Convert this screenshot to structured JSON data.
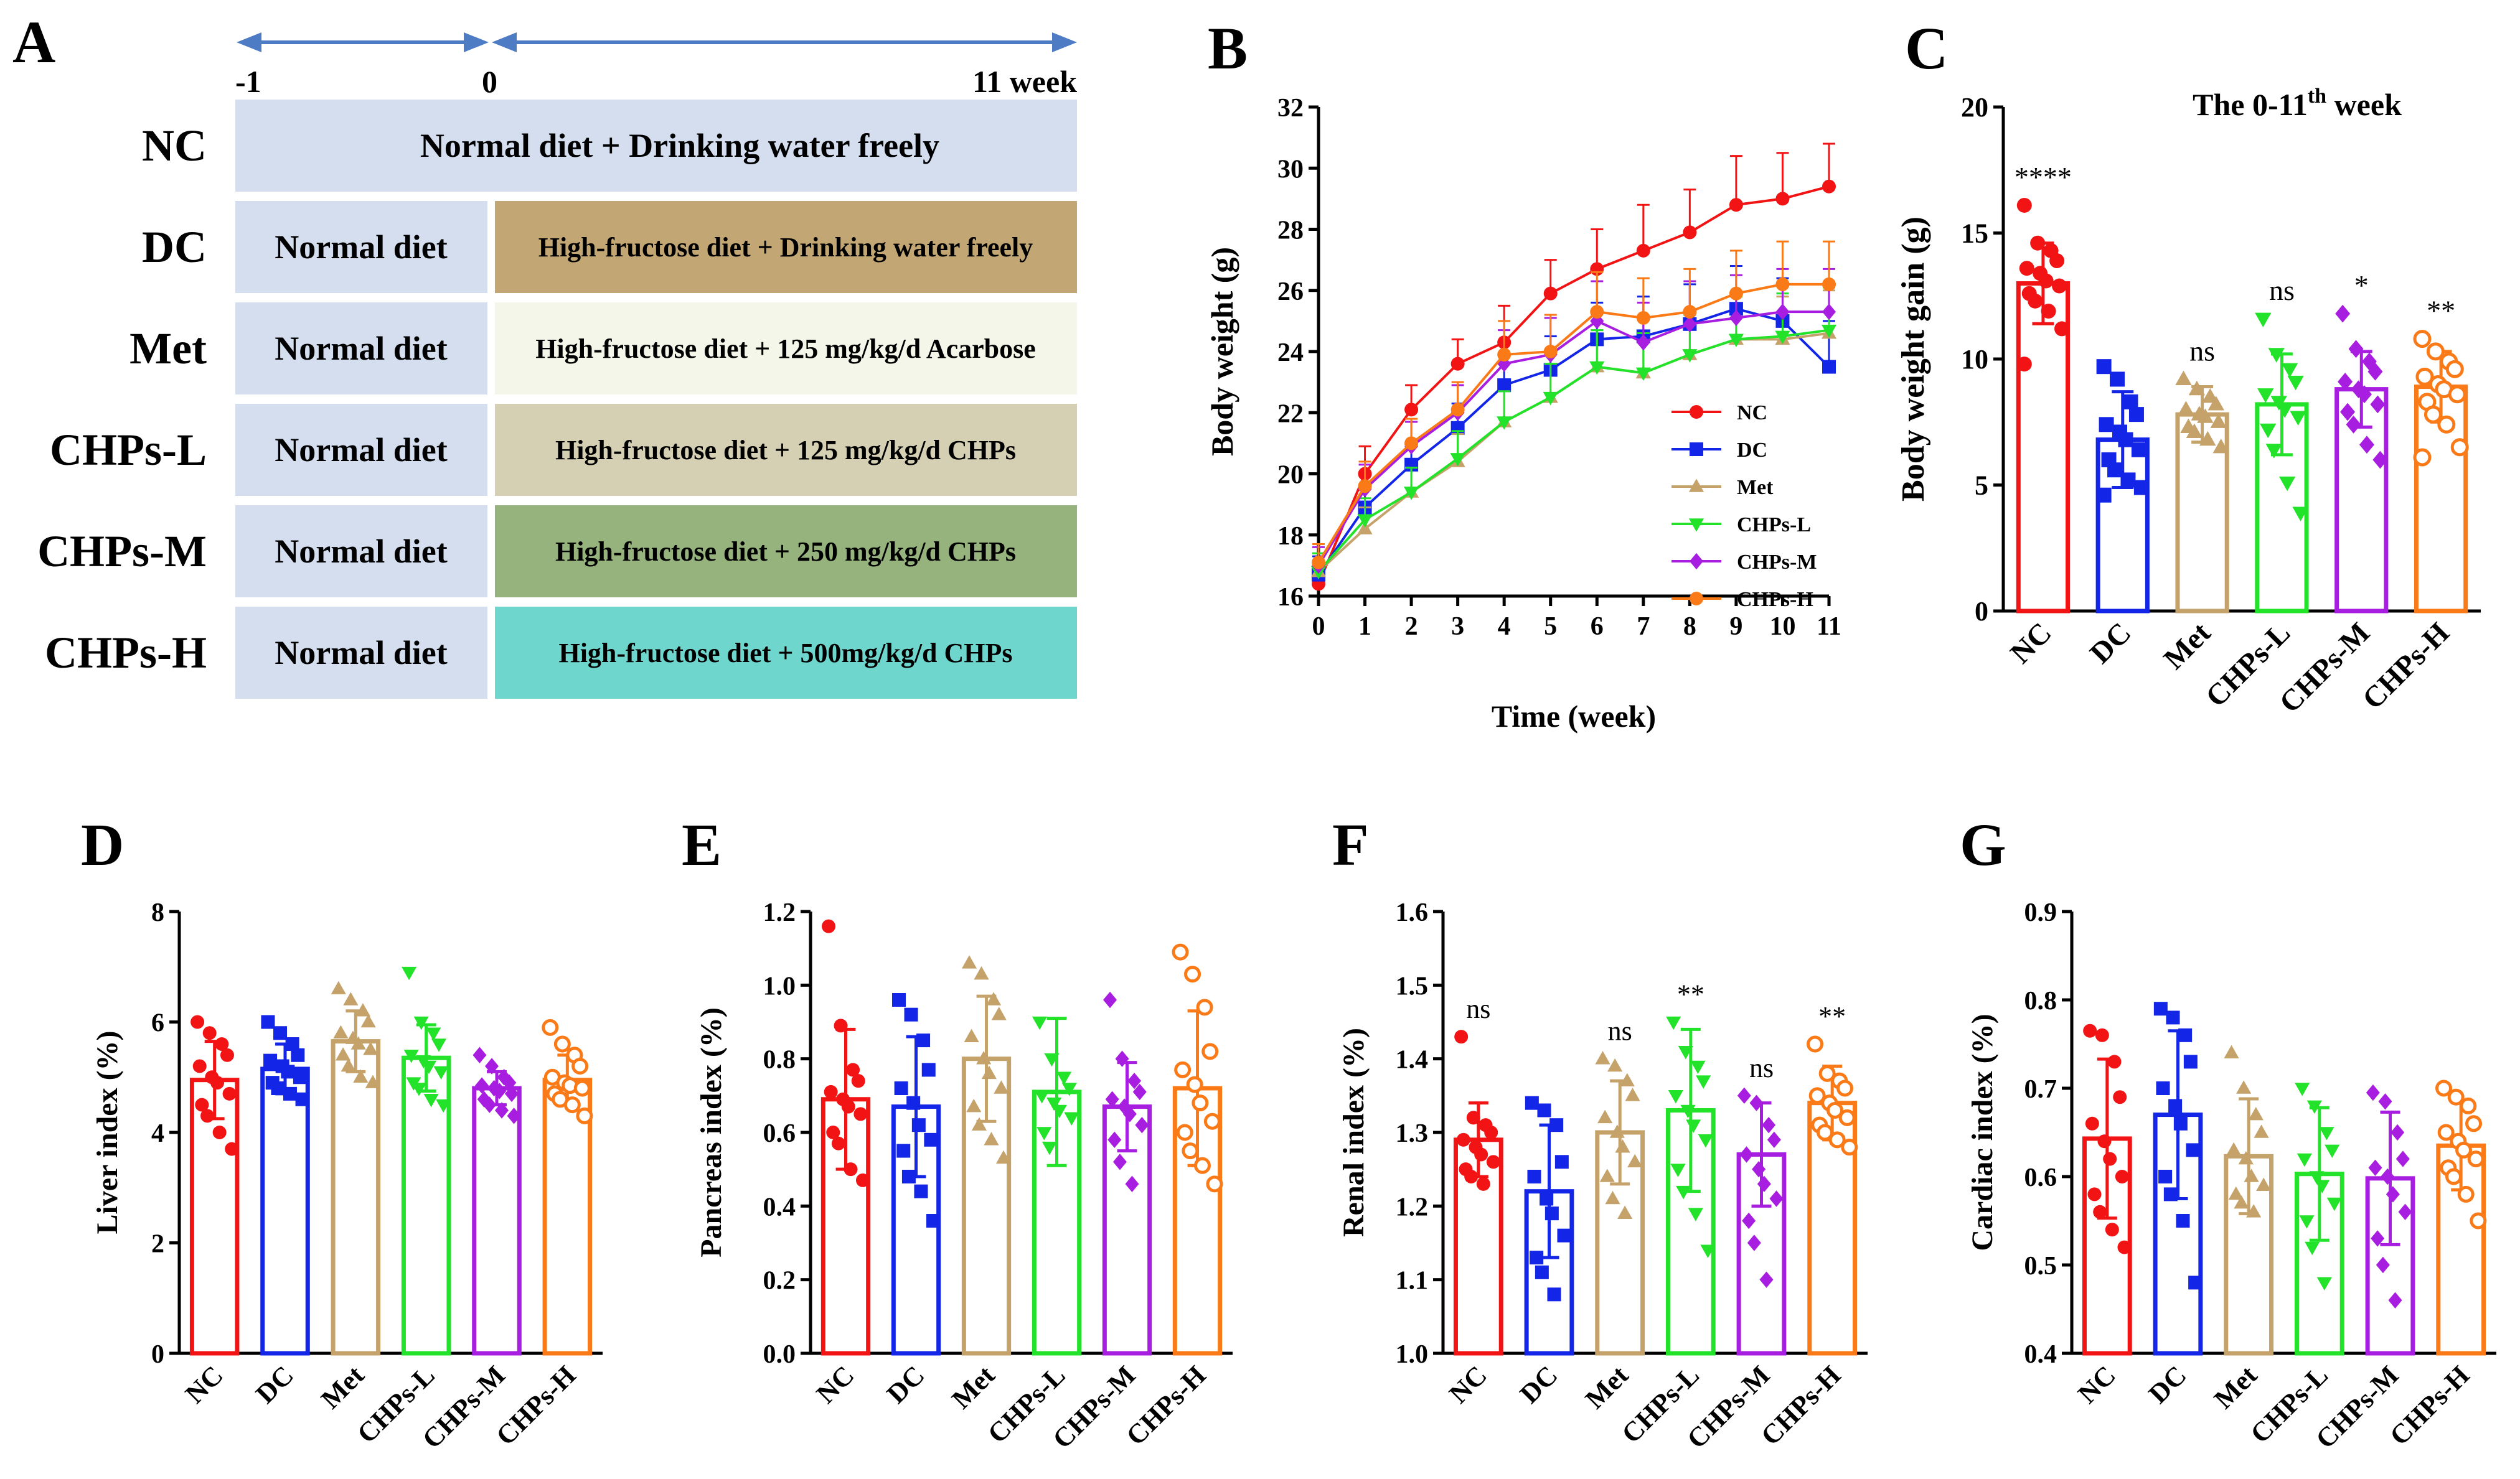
{
  "panels": {
    "A": "A",
    "B": "B",
    "C": "C",
    "D": "D",
    "E": "E",
    "F": "F",
    "G": "G"
  },
  "colors": {
    "NC": "#f21414",
    "DC": "#1326e8",
    "Met": "#c4a26a",
    "CHPs-L": "#22e22a",
    "CHPs-M": "#a81ee0",
    "CHPs-H": "#fa7a18",
    "arrow": "#4d7cc4"
  },
  "schedule": {
    "timeline": {
      "t_start": "-1",
      "t_zero": "0",
      "t_end": "11 week"
    },
    "groups": [
      {
        "name": "NC",
        "pre": "",
        "post": "Normal diet + Drinking water freely",
        "full": true,
        "color": "#d4deef"
      },
      {
        "name": "DC",
        "pre": "Normal diet",
        "post": "High-fructose diet + Drinking water freely",
        "full": false,
        "color": "#c2a673"
      },
      {
        "name": "Met",
        "pre": "Normal diet",
        "post": "High-fructose diet + 125 mg/kg/d Acarbose",
        "full": false,
        "color": "#f4f6ea"
      },
      {
        "name": "CHPs-L",
        "pre": "Normal diet",
        "post": "High-fructose diet + 125 mg/kg/d CHPs",
        "full": false,
        "color": "#d5d0b4"
      },
      {
        "name": "CHPs-M",
        "pre": "Normal diet",
        "post": "High-fructose diet + 250 mg/kg/d CHPs",
        "full": false,
        "color": "#96b37e"
      },
      {
        "name": "CHPs-H",
        "pre": "Normal diet",
        "post": "High-fructose diet + 500mg/kg/d CHPs",
        "full": false,
        "color": "#6fd6cd"
      }
    ],
    "pre_color": "#d4deef"
  },
  "chart_data": [
    {
      "id": "B",
      "type": "line",
      "title": "",
      "xlabel": "Time (week)",
      "ylabel": "Body weight (g)",
      "xlim": [
        0,
        11
      ],
      "ylim": [
        16,
        32
      ],
      "yticks": [
        16,
        18,
        20,
        22,
        24,
        26,
        28,
        30,
        32
      ],
      "x": [
        0,
        1,
        2,
        3,
        4,
        5,
        6,
        7,
        8,
        9,
        10,
        11
      ],
      "series": [
        {
          "name": "NC",
          "marker": "circle",
          "values": [
            16.4,
            20.0,
            22.1,
            23.6,
            24.3,
            25.9,
            26.7,
            27.3,
            27.9,
            28.8,
            29.0,
            29.4
          ],
          "err": [
            0.6,
            0.9,
            0.8,
            0.8,
            1.2,
            1.1,
            1.3,
            1.5,
            1.4,
            1.6,
            1.5,
            1.4
          ]
        },
        {
          "name": "DC",
          "marker": "square",
          "values": [
            16.7,
            18.9,
            20.3,
            21.5,
            22.9,
            23.4,
            24.4,
            24.5,
            24.9,
            25.4,
            25.0,
            23.5
          ],
          "err": [
            0.6,
            0.7,
            0.7,
            0.8,
            1.0,
            1.1,
            1.2,
            1.3,
            1.3,
            1.4,
            1.4,
            1.5
          ]
        },
        {
          "name": "Met",
          "marker": "triangle",
          "values": [
            16.8,
            18.2,
            19.4,
            20.4,
            21.7,
            22.5,
            23.5,
            23.3,
            23.9,
            24.4,
            24.4,
            24.6
          ],
          "err": [
            0.6,
            0.7,
            0.8,
            0.9,
            1.0,
            1.1,
            1.2,
            1.3,
            1.3,
            1.4,
            1.4,
            1.4
          ]
        },
        {
          "name": "CHPs-L",
          "marker": "triangle-down",
          "values": [
            16.8,
            18.5,
            19.4,
            20.5,
            21.7,
            22.5,
            23.5,
            23.3,
            23.9,
            24.4,
            24.5,
            24.7
          ],
          "err": [
            0.6,
            0.7,
            0.8,
            0.9,
            1.0,
            1.1,
            1.2,
            1.3,
            1.3,
            1.4,
            1.4,
            1.4
          ]
        },
        {
          "name": "CHPs-M",
          "marker": "diamond",
          "values": [
            17.0,
            19.5,
            20.9,
            22.0,
            23.6,
            23.9,
            25.0,
            24.3,
            24.9,
            25.1,
            25.3,
            25.3
          ],
          "err": [
            0.6,
            0.8,
            0.8,
            0.9,
            1.1,
            1.2,
            1.3,
            1.3,
            1.4,
            1.4,
            1.4,
            1.4
          ]
        },
        {
          "name": "CHPs-H",
          "marker": "circle",
          "values": [
            17.1,
            19.6,
            21.0,
            22.1,
            23.9,
            24.0,
            25.3,
            25.1,
            25.3,
            25.9,
            26.2,
            26.2
          ],
          "err": [
            0.6,
            0.8,
            0.8,
            0.9,
            1.1,
            1.2,
            1.3,
            1.3,
            1.4,
            1.4,
            1.4,
            1.4
          ]
        }
      ],
      "legend": "right"
    },
    {
      "id": "C",
      "type": "bar",
      "title": "The 0-11th week",
      "title_main": "The 0-11",
      "title_sup": "th",
      "title_tail": " week",
      "xlabel": "",
      "ylabel": "Body weight gain (g)",
      "ylim": [
        0,
        20
      ],
      "yticks": [
        0,
        5,
        10,
        15,
        20
      ],
      "categories": [
        "NC",
        "DC",
        "Met",
        "CHPs-L",
        "CHPs-M",
        "CHPs-H"
      ],
      "values": [
        13.0,
        6.8,
        7.8,
        8.2,
        8.8,
        8.9
      ],
      "sd": [
        1.6,
        1.9,
        1.1,
        2.0,
        1.5,
        1.4
      ],
      "sig": [
        "****",
        "",
        "ns",
        "ns",
        "*",
        "**"
      ],
      "points": [
        [
          16.1,
          14.6,
          14.3,
          13.9,
          13.6,
          13.4,
          13.1,
          12.9,
          12.6,
          12.3,
          11.9,
          11.2,
          9.8
        ],
        [
          9.7,
          9.2,
          8.3,
          7.8,
          7.4,
          7.1,
          6.8,
          6.4,
          6.0,
          5.6,
          5.2,
          4.9,
          4.6
        ],
        [
          9.2,
          8.8,
          8.5,
          8.2,
          8.0,
          7.8,
          7.7,
          7.5,
          7.3,
          7.1,
          6.8,
          6.5
        ],
        [
          11.6,
          10.2,
          9.6,
          9.1,
          8.6,
          8.3,
          8.0,
          7.7,
          7.2,
          6.4,
          5.1,
          3.9
        ],
        [
          11.8,
          10.4,
          9.9,
          9.5,
          9.1,
          8.8,
          8.6,
          8.2,
          7.9,
          7.4,
          6.6,
          6.0
        ],
        [
          10.8,
          10.3,
          9.9,
          9.6,
          9.3,
          9.0,
          8.8,
          8.6,
          8.3,
          7.8,
          7.4,
          6.5,
          6.1
        ]
      ]
    },
    {
      "id": "D",
      "type": "bar",
      "xlabel": "",
      "ylabel": "Liver index (%)",
      "ylim": [
        0,
        8
      ],
      "yticks": [
        0,
        2,
        4,
        6,
        8
      ],
      "categories": [
        "NC",
        "DC",
        "Met",
        "CHPs-L",
        "CHPs-M",
        "CHPs-H"
      ],
      "values": [
        4.95,
        5.15,
        5.65,
        5.35,
        4.8,
        4.95
      ],
      "sd": [
        0.7,
        0.45,
        0.55,
        0.6,
        0.3,
        0.45
      ],
      "sig": [
        "",
        "",
        "",
        "",
        "",
        ""
      ],
      "points": [
        [
          6.0,
          5.8,
          5.6,
          5.4,
          5.2,
          5.0,
          4.9,
          4.7,
          4.5,
          4.3,
          4.0,
          3.7
        ],
        [
          6.0,
          5.8,
          5.6,
          5.4,
          5.3,
          5.2,
          5.1,
          5.0,
          4.9,
          4.8,
          4.7,
          4.6
        ],
        [
          6.6,
          6.4,
          6.2,
          6.0,
          5.8,
          5.7,
          5.6,
          5.5,
          5.4,
          5.2,
          5.0,
          4.9
        ],
        [
          6.9,
          6.0,
          5.8,
          5.6,
          5.4,
          5.3,
          5.2,
          5.1,
          4.9,
          4.8,
          4.6,
          4.5
        ],
        [
          5.4,
          5.2,
          5.0,
          4.9,
          4.85,
          4.8,
          4.75,
          4.7,
          4.6,
          4.5,
          4.4,
          4.3
        ],
        [
          5.9,
          5.6,
          5.4,
          5.2,
          5.0,
          4.9,
          4.85,
          4.8,
          4.7,
          4.6,
          4.5,
          4.3
        ]
      ]
    },
    {
      "id": "E",
      "type": "bar",
      "xlabel": "",
      "ylabel": "Pancreas index (%)",
      "ylim": [
        0,
        1.2
      ],
      "yticks": [
        "0.0",
        "0.2",
        "0.4",
        "0.6",
        "0.8",
        "1.0",
        "1.2"
      ],
      "categories": [
        "NC",
        "DC",
        "Met",
        "CHPs-L",
        "CHPs-M",
        "CHPs-H"
      ],
      "values": [
        0.69,
        0.67,
        0.8,
        0.71,
        0.67,
        0.72
      ],
      "sd": [
        0.19,
        0.19,
        0.17,
        0.2,
        0.12,
        0.21
      ],
      "sig": [
        "",
        "",
        "",
        "",
        "",
        ""
      ],
      "points": [
        [
          1.16,
          0.89,
          0.77,
          0.74,
          0.71,
          0.69,
          0.67,
          0.65,
          0.6,
          0.57,
          0.5,
          0.47
        ],
        [
          0.96,
          0.92,
          0.85,
          0.77,
          0.72,
          0.68,
          0.62,
          0.58,
          0.55,
          0.48,
          0.44,
          0.36
        ],
        [
          1.06,
          1.03,
          0.96,
          0.92,
          0.86,
          0.8,
          0.76,
          0.72,
          0.67,
          0.62,
          0.58,
          0.53
        ],
        [
          0.9,
          0.8,
          0.75,
          0.72,
          0.7,
          0.68,
          0.66,
          0.64,
          0.6,
          0.56
        ],
        [
          0.96,
          0.8,
          0.74,
          0.71,
          0.69,
          0.67,
          0.65,
          0.62,
          0.58,
          0.52,
          0.46
        ],
        [
          1.09,
          1.03,
          0.94,
          0.82,
          0.77,
          0.73,
          0.68,
          0.63,
          0.6,
          0.55,
          0.51,
          0.46
        ]
      ]
    },
    {
      "id": "F",
      "type": "bar",
      "xlabel": "",
      "ylabel": "Renal index (%)",
      "ylim": [
        1.0,
        1.6
      ],
      "yticks": [
        "1.0",
        "1.1",
        "1.2",
        "1.3",
        "1.4",
        "1.5",
        "1.6"
      ],
      "categories": [
        "NC",
        "DC",
        "Met",
        "CHPs-L",
        "CHPs-M",
        "CHPs-H"
      ],
      "values": [
        1.29,
        1.22,
        1.3,
        1.33,
        1.27,
        1.34
      ],
      "sd": [
        0.05,
        0.09,
        0.07,
        0.11,
        0.07,
        0.05
      ],
      "sig": [
        "ns",
        "",
        "ns",
        "**",
        "ns",
        "**"
      ],
      "points": [
        [
          1.43,
          1.32,
          1.31,
          1.3,
          1.29,
          1.28,
          1.27,
          1.26,
          1.25,
          1.24,
          1.23
        ],
        [
          1.34,
          1.33,
          1.31,
          1.26,
          1.24,
          1.21,
          1.19,
          1.16,
          1.13,
          1.11,
          1.08
        ],
        [
          1.4,
          1.39,
          1.37,
          1.35,
          1.32,
          1.3,
          1.28,
          1.26,
          1.24,
          1.21,
          1.19
        ],
        [
          1.45,
          1.41,
          1.39,
          1.37,
          1.35,
          1.33,
          1.31,
          1.29,
          1.25,
          1.22,
          1.19,
          1.14
        ],
        [
          1.35,
          1.34,
          1.31,
          1.29,
          1.27,
          1.25,
          1.23,
          1.21,
          1.18,
          1.15,
          1.1
        ],
        [
          1.42,
          1.38,
          1.37,
          1.36,
          1.35,
          1.34,
          1.33,
          1.32,
          1.31,
          1.3,
          1.29,
          1.28
        ]
      ]
    },
    {
      "id": "G",
      "type": "bar",
      "xlabel": "",
      "ylabel": "Cardiac index (%)",
      "ylim": [
        0.4,
        0.9
      ],
      "yticks": [
        "0.4",
        "0.5",
        "0.6",
        "0.7",
        "0.8",
        "0.9"
      ],
      "categories": [
        "NC",
        "DC",
        "Met",
        "CHPs-L",
        "CHPs-M",
        "CHPs-H"
      ],
      "values": [
        0.643,
        0.67,
        0.623,
        0.603,
        0.598,
        0.635
      ],
      "sd": [
        0.09,
        0.095,
        0.065,
        0.075,
        0.075,
        0.05
      ],
      "sig": [
        "",
        "",
        "",
        "",
        "",
        ""
      ],
      "points": [
        [
          0.765,
          0.76,
          0.73,
          0.69,
          0.66,
          0.64,
          0.62,
          0.6,
          0.58,
          0.56,
          0.54,
          0.52
        ],
        [
          0.79,
          0.78,
          0.76,
          0.73,
          0.7,
          0.68,
          0.66,
          0.63,
          0.6,
          0.58,
          0.55,
          0.48
        ],
        [
          0.74,
          0.7,
          0.67,
          0.65,
          0.63,
          0.62,
          0.6,
          0.59,
          0.58,
          0.57,
          0.56
        ],
        [
          0.7,
          0.68,
          0.65,
          0.63,
          0.62,
          0.6,
          0.59,
          0.57,
          0.55,
          0.52,
          0.48
        ],
        [
          0.695,
          0.685,
          0.65,
          0.62,
          0.61,
          0.6,
          0.58,
          0.56,
          0.53,
          0.5,
          0.46
        ],
        [
          0.7,
          0.69,
          0.68,
          0.66,
          0.65,
          0.64,
          0.63,
          0.62,
          0.61,
          0.6,
          0.58,
          0.55
        ]
      ]
    }
  ]
}
